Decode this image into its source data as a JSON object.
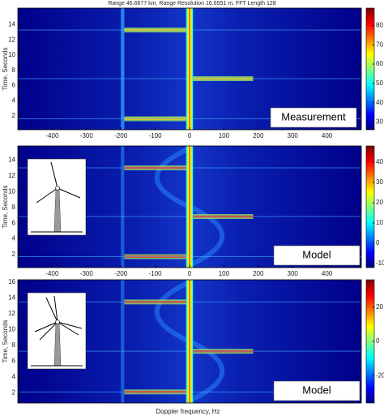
{
  "chart_data": [
    {
      "type": "heatmap",
      "title": "Range 46.6677 km, Range Resolution 16.6551 m, FFT Length 128",
      "label": "Measurement",
      "ylabel": "Time, Seconds",
      "xlim": [
        -500,
        500
      ],
      "xticks": [
        -400,
        -300,
        -200,
        -100,
        0,
        100,
        200,
        300,
        400
      ],
      "ylim": [
        0.2,
        16.2
      ],
      "yticks": [
        2,
        4,
        6,
        8,
        10,
        12,
        14
      ],
      "clim": [
        26,
        89
      ],
      "cticks": [
        30,
        40,
        50,
        60,
        70,
        80
      ]
    },
    {
      "type": "heatmap",
      "label": "Model",
      "ylabel": "Time, Seconds",
      "xlim": [
        -500,
        500
      ],
      "xticks": [
        -400,
        -300,
        -200,
        -100,
        0,
        100,
        200,
        300,
        400
      ],
      "ylim": [
        0.35,
        15.8
      ],
      "yticks": [
        2,
        4,
        6,
        8,
        10,
        12,
        14
      ],
      "clim": [
        -12,
        48
      ],
      "cticks": [
        -10,
        0,
        10,
        20,
        30,
        40
      ]
    },
    {
      "type": "heatmap",
      "label": "Model",
      "ylabel": "Time, Seconds",
      "xlabel": "Doppler frequency, Hz",
      "xlim": [
        -500,
        500
      ],
      "ylim": [
        0.7,
        16.3
      ],
      "yticks": [
        2,
        4,
        6,
        8,
        10,
        12,
        14,
        16
      ],
      "clim": [
        -36,
        36
      ],
      "cticks": [
        -20,
        0,
        20
      ]
    }
  ]
}
